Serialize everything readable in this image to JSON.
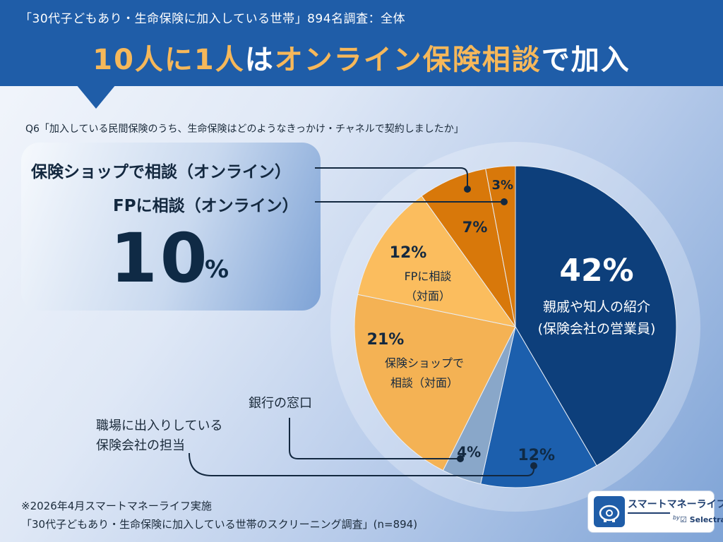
{
  "header": {
    "subtitle": "「30代子どもあり・生命保険に加入している世帯」894名調査：全体",
    "title_part1": "10人に1人",
    "title_part2": "は",
    "title_part3": "オンライン保険相談",
    "title_part4": "で加入"
  },
  "question": "Q6「加入している民間保険のうち、生命保険はどのようなきっかけ・チャネルで契約しましたか」",
  "callout": {
    "label1": "保険ショップで相談（オンライン）",
    "label2": "FPに相談（オンライン）",
    "big_value": "10",
    "big_unit": "%"
  },
  "outer_labels": {
    "bank": "銀行の窓口",
    "workplace_line1": "職場に出入りしている",
    "workplace_line2": "保険会社の担当"
  },
  "footer": {
    "line1": "※2026年4月スマートマネーライフ実施",
    "line2": "「30代子どもあり・生命保険に加入している世帯のスクリーニング調査」(n=894)"
  },
  "logo": {
    "name": "スマートマネーライフ",
    "by": "by",
    "brand": "☑ Selectra"
  },
  "colors": {
    "header": "#1f5da8",
    "highlight": "#f6b85a"
  },
  "chart_data": {
    "type": "pie",
    "start": "12 o'clock, clockwise",
    "slices": [
      {
        "key": "relatives",
        "value": 42,
        "label": "42%",
        "text": [
          "親戚や知人の紹介",
          "(保険会社の営業員)"
        ],
        "color": "#0d3f7b"
      },
      {
        "key": "workplace",
        "value": 12,
        "label": "12%",
        "text": [],
        "color": "#1c5fad"
      },
      {
        "key": "bank",
        "value": 4,
        "label": "4%",
        "text": [],
        "color": "#89a7c9"
      },
      {
        "key": "shop_face",
        "value": 21,
        "label": "21%",
        "text": [
          "保険ショップで",
          "相談（対面）"
        ],
        "color": "#f4b254"
      },
      {
        "key": "fp_face",
        "value": 12,
        "label": "12%",
        "text": [
          "FPに相談",
          "（対面）"
        ],
        "color": "#fbbd5e"
      },
      {
        "key": "shop_online",
        "value": 7,
        "label": "7%",
        "text": [],
        "color": "#d8780a"
      },
      {
        "key": "fp_online",
        "value": 3,
        "label": "3%",
        "text": [],
        "color": "#d8780a"
      }
    ]
  }
}
